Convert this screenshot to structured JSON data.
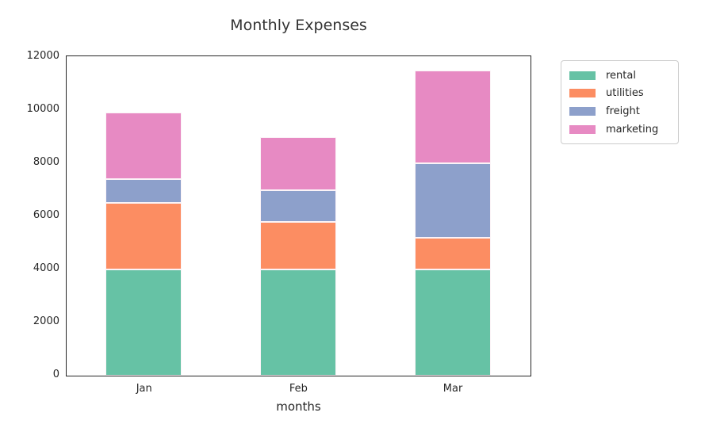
{
  "chart_data": {
    "type": "bar",
    "stacked": true,
    "title": "Monthly Expenses",
    "xlabel": "months",
    "ylabel": "",
    "categories": [
      "Jan",
      "Feb",
      "Mar"
    ],
    "series": [
      {
        "name": "rental",
        "color": "#66c2a5",
        "values": [
          4000,
          4000,
          4000
        ]
      },
      {
        "name": "utilities",
        "color": "#fc8d62",
        "values": [
          2500,
          1800,
          1200
        ]
      },
      {
        "name": "freight",
        "color": "#8da0cb",
        "values": [
          900,
          1200,
          2800
        ]
      },
      {
        "name": "marketing",
        "color": "#e78ac3",
        "values": [
          2500,
          2000,
          3500
        ]
      }
    ],
    "stack_totals": [
      9900,
      9000,
      11500
    ],
    "ylim": [
      0,
      12000
    ],
    "ytick_step": 2000,
    "ytick_labels": [
      "0",
      "2000",
      "4000",
      "6000",
      "8000",
      "10000",
      "12000"
    ],
    "xtick_labels": [
      "Jan",
      "Feb",
      "Mar"
    ],
    "grid": false,
    "legend": {
      "position": "upper-right-outside",
      "entries": [
        "rental",
        "utilities",
        "freight",
        "marketing"
      ]
    }
  },
  "styles": {
    "frame_color": "#262626",
    "text_color": "#262626",
    "title_color": "#343434",
    "legend_border_color": "#cccccc",
    "background_color": "#ffffff",
    "bar_edge_color": "#ffffff"
  }
}
